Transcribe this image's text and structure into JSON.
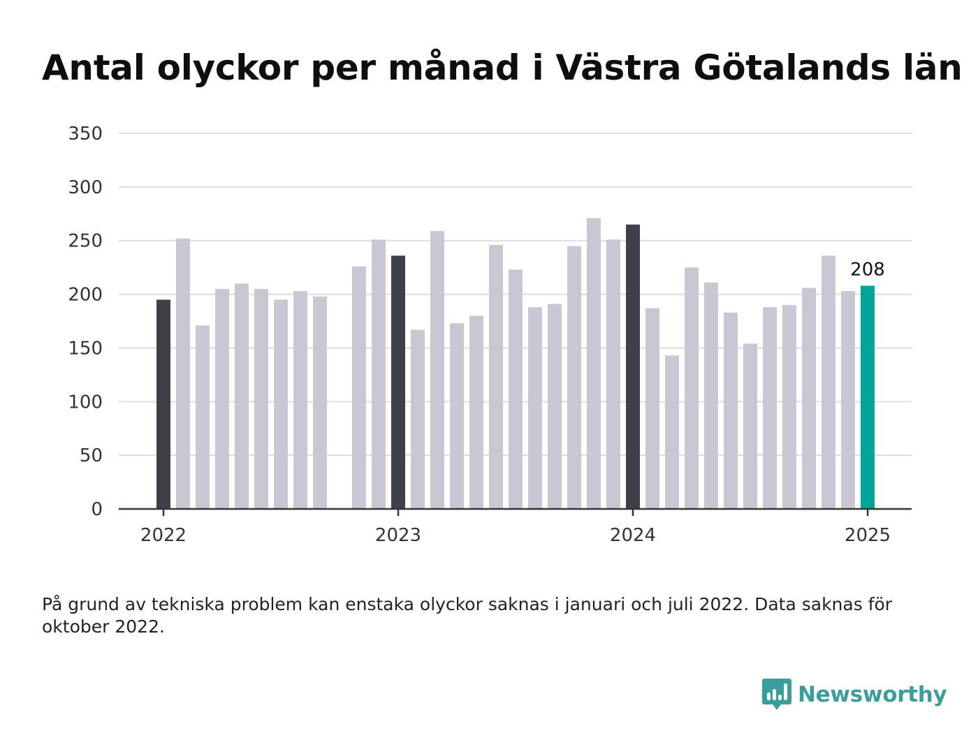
{
  "title": "Antal olyckor per månad i Västra Götalands län",
  "note": "På grund av tekniska problem kan enstaka olyckor saknas i januari och juli 2022. Data saknas för oktober 2022.",
  "brand": {
    "name": "Newsworthy",
    "icon": "newsworthy-bar-chart-logo-icon",
    "color": "#3a9f9a"
  },
  "colors": {
    "default": "#c8c7d3",
    "january": "#403f4c",
    "latest": "#00a59a",
    "grid": "#dddddd",
    "axis": "#333333"
  },
  "chart_data": {
    "type": "bar",
    "title": "Antal olyckor per månad i Västra Götalands län",
    "xlabel": "",
    "ylabel": "",
    "ylim": [
      0,
      350
    ],
    "yticks": [
      0,
      50,
      100,
      150,
      200,
      250,
      300,
      350
    ],
    "xticks": [
      "2022",
      "2023",
      "2024",
      "2025"
    ],
    "grid": true,
    "highlight_label": "208",
    "categories": [
      "2022-01",
      "2022-02",
      "2022-03",
      "2022-04",
      "2022-05",
      "2022-06",
      "2022-07",
      "2022-08",
      "2022-09",
      "2022-10",
      "2022-11",
      "2022-12",
      "2023-01",
      "2023-02",
      "2023-03",
      "2023-04",
      "2023-05",
      "2023-06",
      "2023-07",
      "2023-08",
      "2023-09",
      "2023-10",
      "2023-11",
      "2023-12",
      "2024-01",
      "2024-02",
      "2024-03",
      "2024-04",
      "2024-05",
      "2024-06",
      "2024-07",
      "2024-08",
      "2024-09",
      "2024-10",
      "2024-11",
      "2024-12",
      "2025-01"
    ],
    "values": [
      195,
      252,
      171,
      205,
      210,
      205,
      195,
      203,
      198,
      null,
      226,
      251,
      236,
      167,
      259,
      173,
      180,
      246,
      223,
      188,
      191,
      245,
      271,
      251,
      265,
      187,
      143,
      225,
      211,
      183,
      154,
      188,
      190,
      206,
      236,
      203,
      208
    ]
  }
}
